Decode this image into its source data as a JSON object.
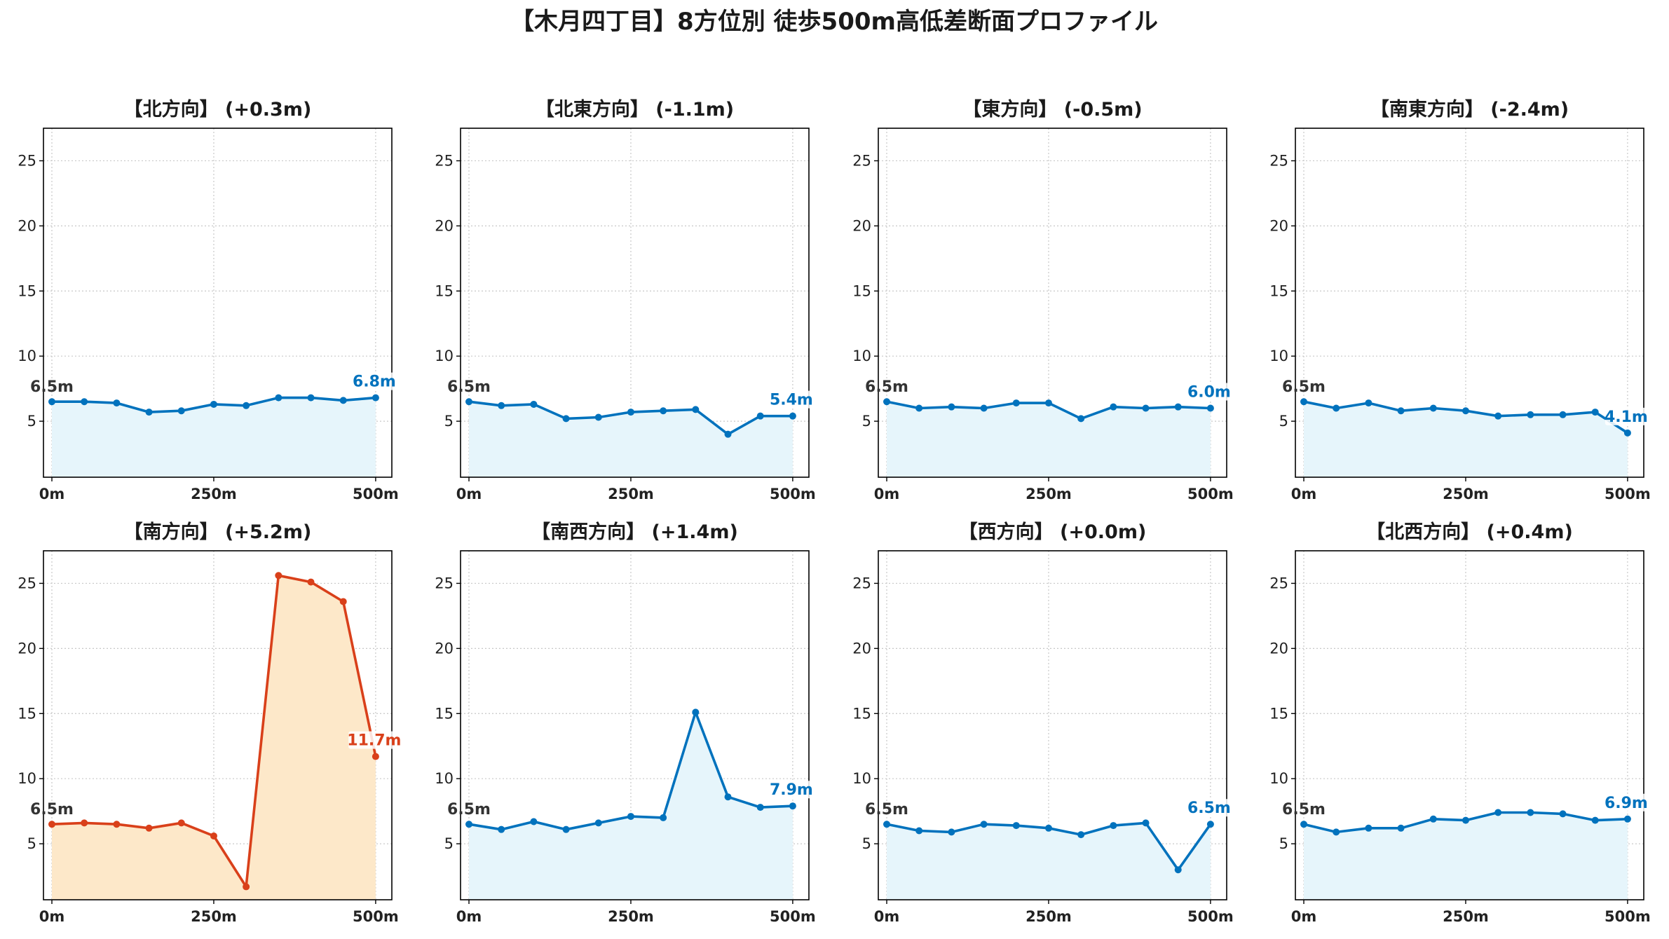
{
  "figure": {
    "title": "【木月四丁目】8方位別 徒歩500m高低差断面プロファイル",
    "colors": {
      "normal_line": "#0072bd",
      "normal_fill": "#e6f5fb",
      "highlight_line": "#d9401a",
      "highlight_fill": "#fde8c9",
      "start_label": "#333333"
    }
  },
  "chart_data": [
    {
      "type": "area",
      "title": "【北方向】 (+0.3m)",
      "x": [
        0,
        50,
        100,
        150,
        200,
        250,
        300,
        350,
        400,
        450,
        500
      ],
      "series": [
        {
          "values": [
            6.5,
            6.5,
            6.4,
            5.7,
            5.8,
            6.3,
            6.2,
            6.8,
            6.8,
            6.6,
            6.8
          ]
        }
      ],
      "start_label": "6.5m",
      "end_label": "6.8m",
      "highlight": false,
      "xticks": [
        "0m",
        "250m",
        "500m"
      ],
      "yticks": [
        "5",
        "10",
        "15",
        "20",
        "25"
      ],
      "ylim": [
        0.7,
        27.5
      ],
      "xlim": [
        -13,
        525
      ],
      "grid": true
    },
    {
      "type": "area",
      "title": "【北東方向】 (-1.1m)",
      "x": [
        0,
        50,
        100,
        150,
        200,
        250,
        300,
        350,
        400,
        450,
        500
      ],
      "series": [
        {
          "values": [
            6.5,
            6.2,
            6.3,
            5.2,
            5.3,
            5.7,
            5.8,
            5.9,
            4.0,
            5.4,
            5.4
          ]
        }
      ],
      "start_label": "6.5m",
      "end_label": "5.4m",
      "highlight": false,
      "xticks": [
        "0m",
        "250m",
        "500m"
      ],
      "yticks": [
        "5",
        "10",
        "15",
        "20",
        "25"
      ],
      "ylim": [
        0.7,
        27.5
      ],
      "xlim": [
        -13,
        525
      ],
      "grid": true
    },
    {
      "type": "area",
      "title": "【東方向】 (-0.5m)",
      "x": [
        0,
        50,
        100,
        150,
        200,
        250,
        300,
        350,
        400,
        450,
        500
      ],
      "series": [
        {
          "values": [
            6.5,
            6.0,
            6.1,
            6.0,
            6.4,
            6.4,
            5.2,
            6.1,
            6.0,
            6.1,
            6.0
          ]
        }
      ],
      "start_label": "6.5m",
      "end_label": "6.0m",
      "highlight": false,
      "xticks": [
        "0m",
        "250m",
        "500m"
      ],
      "yticks": [
        "5",
        "10",
        "15",
        "20",
        "25"
      ],
      "ylim": [
        0.7,
        27.5
      ],
      "xlim": [
        -13,
        525
      ],
      "grid": true
    },
    {
      "type": "area",
      "title": "【南東方向】 (-2.4m)",
      "x": [
        0,
        50,
        100,
        150,
        200,
        250,
        300,
        350,
        400,
        450,
        500
      ],
      "series": [
        {
          "values": [
            6.5,
            6.0,
            6.4,
            5.8,
            6.0,
            5.8,
            5.4,
            5.5,
            5.5,
            5.7,
            4.1
          ]
        }
      ],
      "start_label": "6.5m",
      "end_label": "4.1m",
      "highlight": false,
      "xticks": [
        "0m",
        "250m",
        "500m"
      ],
      "yticks": [
        "5",
        "10",
        "15",
        "20",
        "25"
      ],
      "ylim": [
        0.7,
        27.5
      ],
      "xlim": [
        -13,
        525
      ],
      "grid": true
    },
    {
      "type": "area",
      "title": "【南方向】 (+5.2m)",
      "x": [
        0,
        50,
        100,
        150,
        200,
        250,
        300,
        350,
        400,
        450,
        500
      ],
      "series": [
        {
          "values": [
            6.5,
            6.6,
            6.5,
            6.2,
            6.6,
            5.6,
            1.7,
            25.6,
            25.1,
            23.6,
            11.7
          ]
        }
      ],
      "start_label": "6.5m",
      "end_label": "11.7m",
      "highlight": true,
      "xticks": [
        "0m",
        "250m",
        "500m"
      ],
      "yticks": [
        "5",
        "10",
        "15",
        "20",
        "25"
      ],
      "ylim": [
        0.7,
        27.5
      ],
      "xlim": [
        -13,
        525
      ],
      "grid": true
    },
    {
      "type": "area",
      "title": "【南西方向】 (+1.4m)",
      "x": [
        0,
        50,
        100,
        150,
        200,
        250,
        300,
        350,
        400,
        450,
        500
      ],
      "series": [
        {
          "values": [
            6.5,
            6.1,
            6.7,
            6.1,
            6.6,
            7.1,
            7.0,
            15.1,
            8.6,
            7.8,
            7.9
          ]
        }
      ],
      "start_label": "6.5m",
      "end_label": "7.9m",
      "highlight": false,
      "xticks": [
        "0m",
        "250m",
        "500m"
      ],
      "yticks": [
        "5",
        "10",
        "15",
        "20",
        "25"
      ],
      "ylim": [
        0.7,
        27.5
      ],
      "xlim": [
        -13,
        525
      ],
      "grid": true
    },
    {
      "type": "area",
      "title": "【西方向】 (+0.0m)",
      "x": [
        0,
        50,
        100,
        150,
        200,
        250,
        300,
        350,
        400,
        450,
        500
      ],
      "series": [
        {
          "values": [
            6.5,
            6.0,
            5.9,
            6.5,
            6.4,
            6.2,
            5.7,
            6.4,
            6.6,
            3.0,
            6.5
          ]
        }
      ],
      "start_label": "6.5m",
      "end_label": "6.5m",
      "highlight": false,
      "xticks": [
        "0m",
        "250m",
        "500m"
      ],
      "yticks": [
        "5",
        "10",
        "15",
        "20",
        "25"
      ],
      "ylim": [
        0.7,
        27.5
      ],
      "xlim": [
        -13,
        525
      ],
      "grid": true
    },
    {
      "type": "area",
      "title": "【北西方向】 (+0.4m)",
      "x": [
        0,
        50,
        100,
        150,
        200,
        250,
        300,
        350,
        400,
        450,
        500
      ],
      "series": [
        {
          "values": [
            6.5,
            5.9,
            6.2,
            6.2,
            6.9,
            6.8,
            7.4,
            7.4,
            7.3,
            6.8,
            6.9
          ]
        }
      ],
      "start_label": "6.5m",
      "end_label": "6.9m",
      "highlight": false,
      "xticks": [
        "0m",
        "250m",
        "500m"
      ],
      "yticks": [
        "5",
        "10",
        "15",
        "20",
        "25"
      ],
      "ylim": [
        0.7,
        27.5
      ],
      "xlim": [
        -13,
        525
      ],
      "grid": true
    }
  ]
}
